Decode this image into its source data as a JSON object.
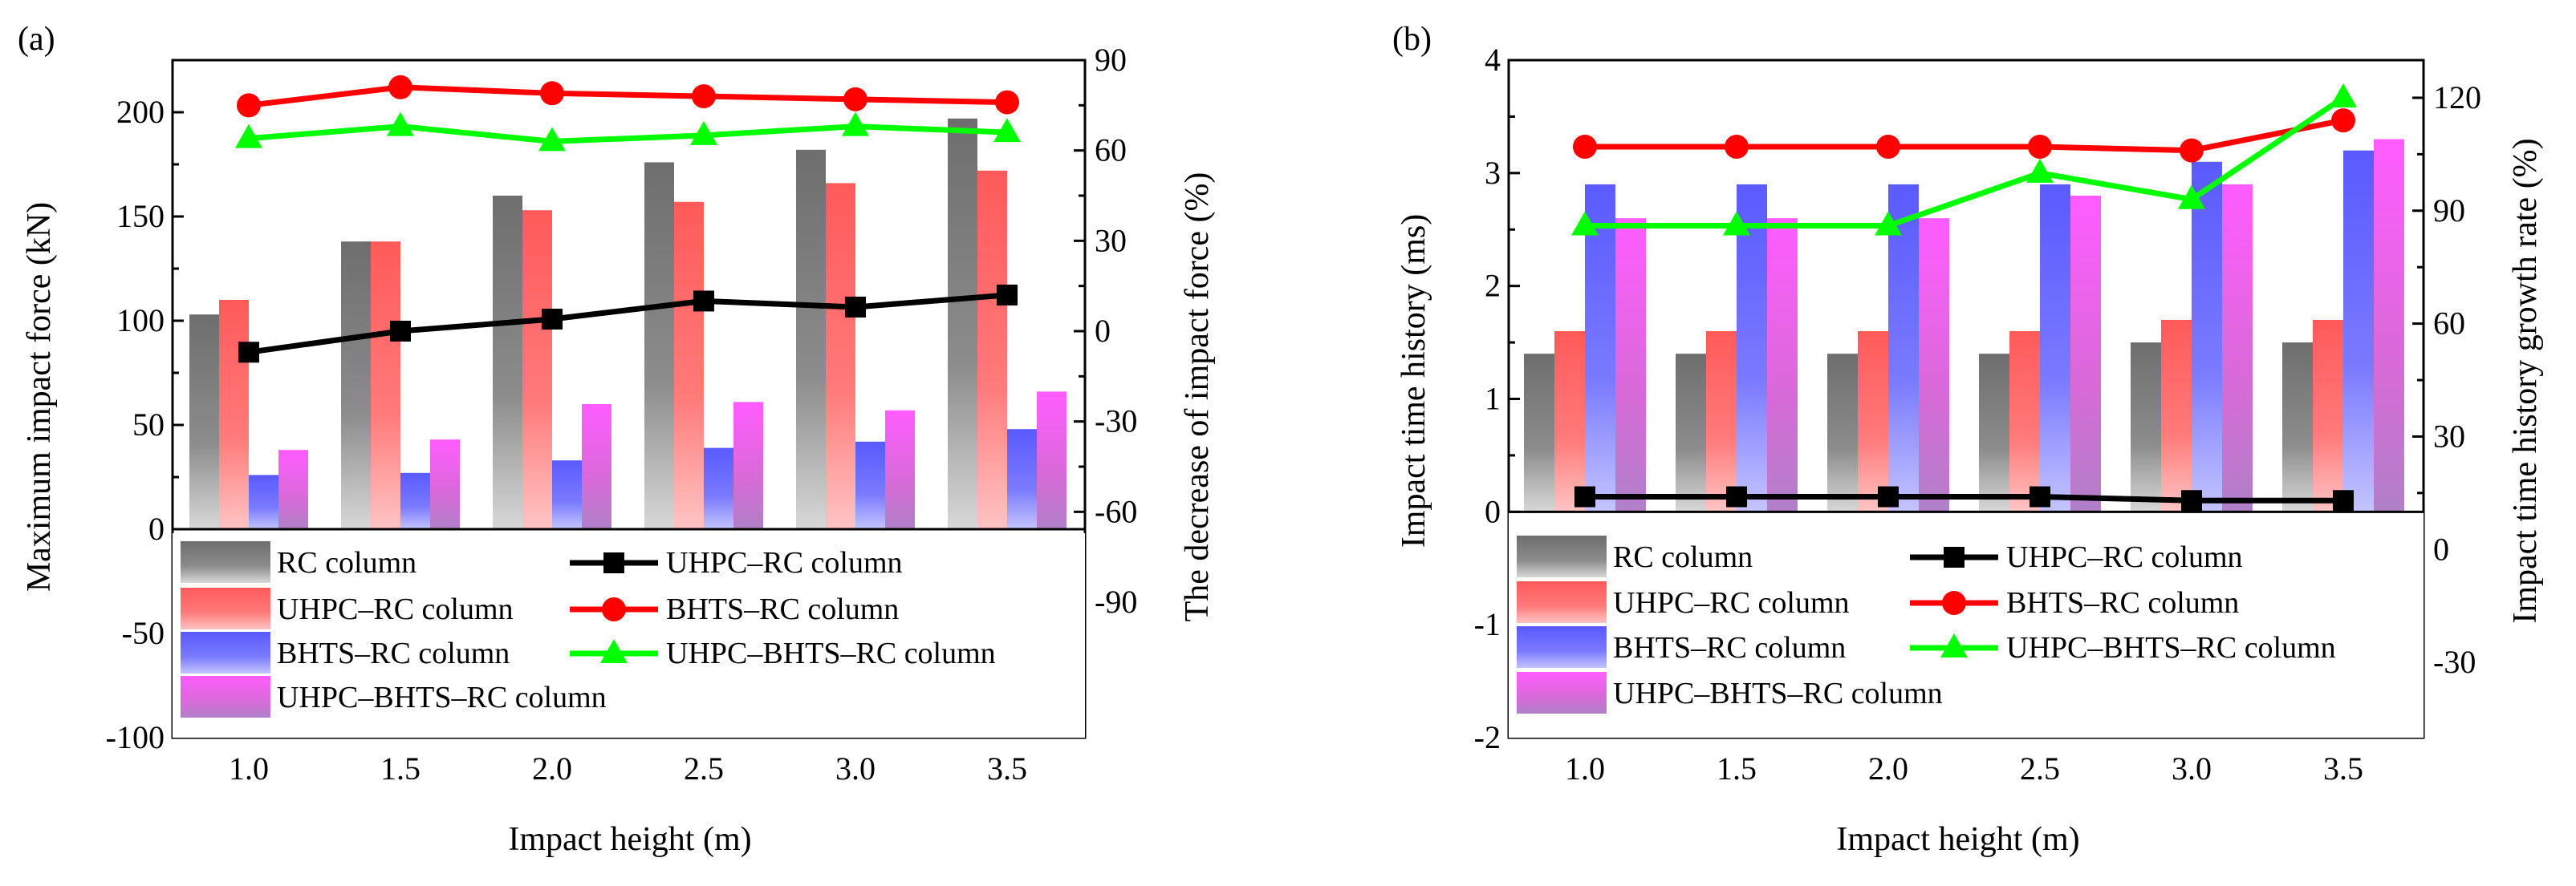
{
  "colors": {
    "rc": "#808080",
    "uhpc": "#ff6a6a",
    "bhts": "#6a6aff",
    "uhpc_bhts": "#e060e8",
    "line_uhpc": "#000000",
    "line_bhts": "#ff0000",
    "line_uhpc_bhts": "#00ff00"
  },
  "chart_data": [
    {
      "panel": "(a)",
      "type": "bar",
      "xlabel": "Impact height (m)",
      "ylabel": "Maximum impact force (kN)",
      "y2label": "The decrease of impact force (%)",
      "categories": [
        "1.0",
        "1.5",
        "2.0",
        "2.5",
        "3.0",
        "3.5"
      ],
      "ylim": [
        -100,
        225
      ],
      "y_ticks": [
        "-100",
        "-50",
        "0",
        "50",
        "100",
        "150",
        "200"
      ],
      "y2lim": [
        -135,
        90
      ],
      "y2_ticks": [
        "-90",
        "-60",
        "-30",
        "0",
        "30",
        "60",
        "90"
      ],
      "series": [
        {
          "name": "RC column",
          "kind": "bar",
          "color_key": "rc",
          "values": [
            103,
            138,
            160,
            176,
            182,
            197
          ]
        },
        {
          "name": "UHPC–RC column",
          "kind": "bar",
          "color_key": "uhpc",
          "values": [
            110,
            138,
            153,
            157,
            166,
            172
          ]
        },
        {
          "name": "BHTS–RC column",
          "kind": "bar",
          "color_key": "bhts",
          "values": [
            26,
            27,
            33,
            39,
            42,
            48
          ]
        },
        {
          "name": "UHPC–BHTS–RC column",
          "kind": "bar",
          "color_key": "uhpc_bhts",
          "values": [
            38,
            43,
            60,
            61,
            57,
            66
          ]
        },
        {
          "name": "UHPC–RC column",
          "kind": "line",
          "axis": "y2",
          "marker": "square",
          "color_key": "line_uhpc",
          "values": [
            -7,
            0,
            4,
            10,
            8,
            12
          ]
        },
        {
          "name": "BHTS–RC column",
          "kind": "line",
          "axis": "y2",
          "marker": "circle",
          "color_key": "line_bhts",
          "values": [
            75,
            81,
            79,
            78,
            77,
            76
          ]
        },
        {
          "name": "UHPC–BHTS–RC column",
          "kind": "line",
          "axis": "y2",
          "marker": "triangle",
          "color_key": "line_uhpc_bhts",
          "values": [
            64,
            68,
            63,
            65,
            68,
            66
          ]
        }
      ]
    },
    {
      "panel": "(b)",
      "type": "bar",
      "xlabel": "Impact height (m)",
      "ylabel": "Impact time history (ms)",
      "y2label": "Impact time history growth rate (%)",
      "categories": [
        "1.0",
        "1.5",
        "2.0",
        "2.5",
        "3.0",
        "3.5"
      ],
      "ylim": [
        -2,
        4
      ],
      "y_ticks": [
        "-2",
        "-1",
        "0",
        "1",
        "2",
        "3",
        "4"
      ],
      "y2lim": [
        -50,
        130
      ],
      "y2_ticks": [
        "-30",
        "0",
        "30",
        "60",
        "90",
        "120"
      ],
      "series": [
        {
          "name": "RC column",
          "kind": "bar",
          "color_key": "rc",
          "values": [
            1.4,
            1.4,
            1.4,
            1.4,
            1.5,
            1.5
          ]
        },
        {
          "name": "UHPC–RC column",
          "kind": "bar",
          "color_key": "uhpc",
          "values": [
            1.6,
            1.6,
            1.6,
            1.6,
            1.7,
            1.7
          ]
        },
        {
          "name": "BHTS–RC column",
          "kind": "bar",
          "color_key": "bhts",
          "values": [
            2.9,
            2.9,
            2.9,
            2.9,
            3.1,
            3.2
          ]
        },
        {
          "name": "UHPC–BHTS–RC column",
          "kind": "bar",
          "color_key": "uhpc_bhts",
          "values": [
            2.6,
            2.6,
            2.6,
            2.8,
            2.9,
            3.3
          ]
        },
        {
          "name": "UHPC–RC column",
          "kind": "line",
          "axis": "y2",
          "marker": "square",
          "color_key": "line_uhpc",
          "values": [
            14,
            14,
            14,
            14,
            13,
            13
          ]
        },
        {
          "name": "BHTS–RC column",
          "kind": "line",
          "axis": "y2",
          "marker": "circle",
          "color_key": "line_bhts",
          "values": [
            107,
            107,
            107,
            107,
            106,
            114
          ]
        },
        {
          "name": "UHPC–BHTS–RC column",
          "kind": "line",
          "axis": "y2",
          "marker": "triangle",
          "color_key": "line_uhpc_bhts",
          "values": [
            86,
            86,
            86,
            100,
            93,
            120
          ]
        }
      ]
    }
  ]
}
